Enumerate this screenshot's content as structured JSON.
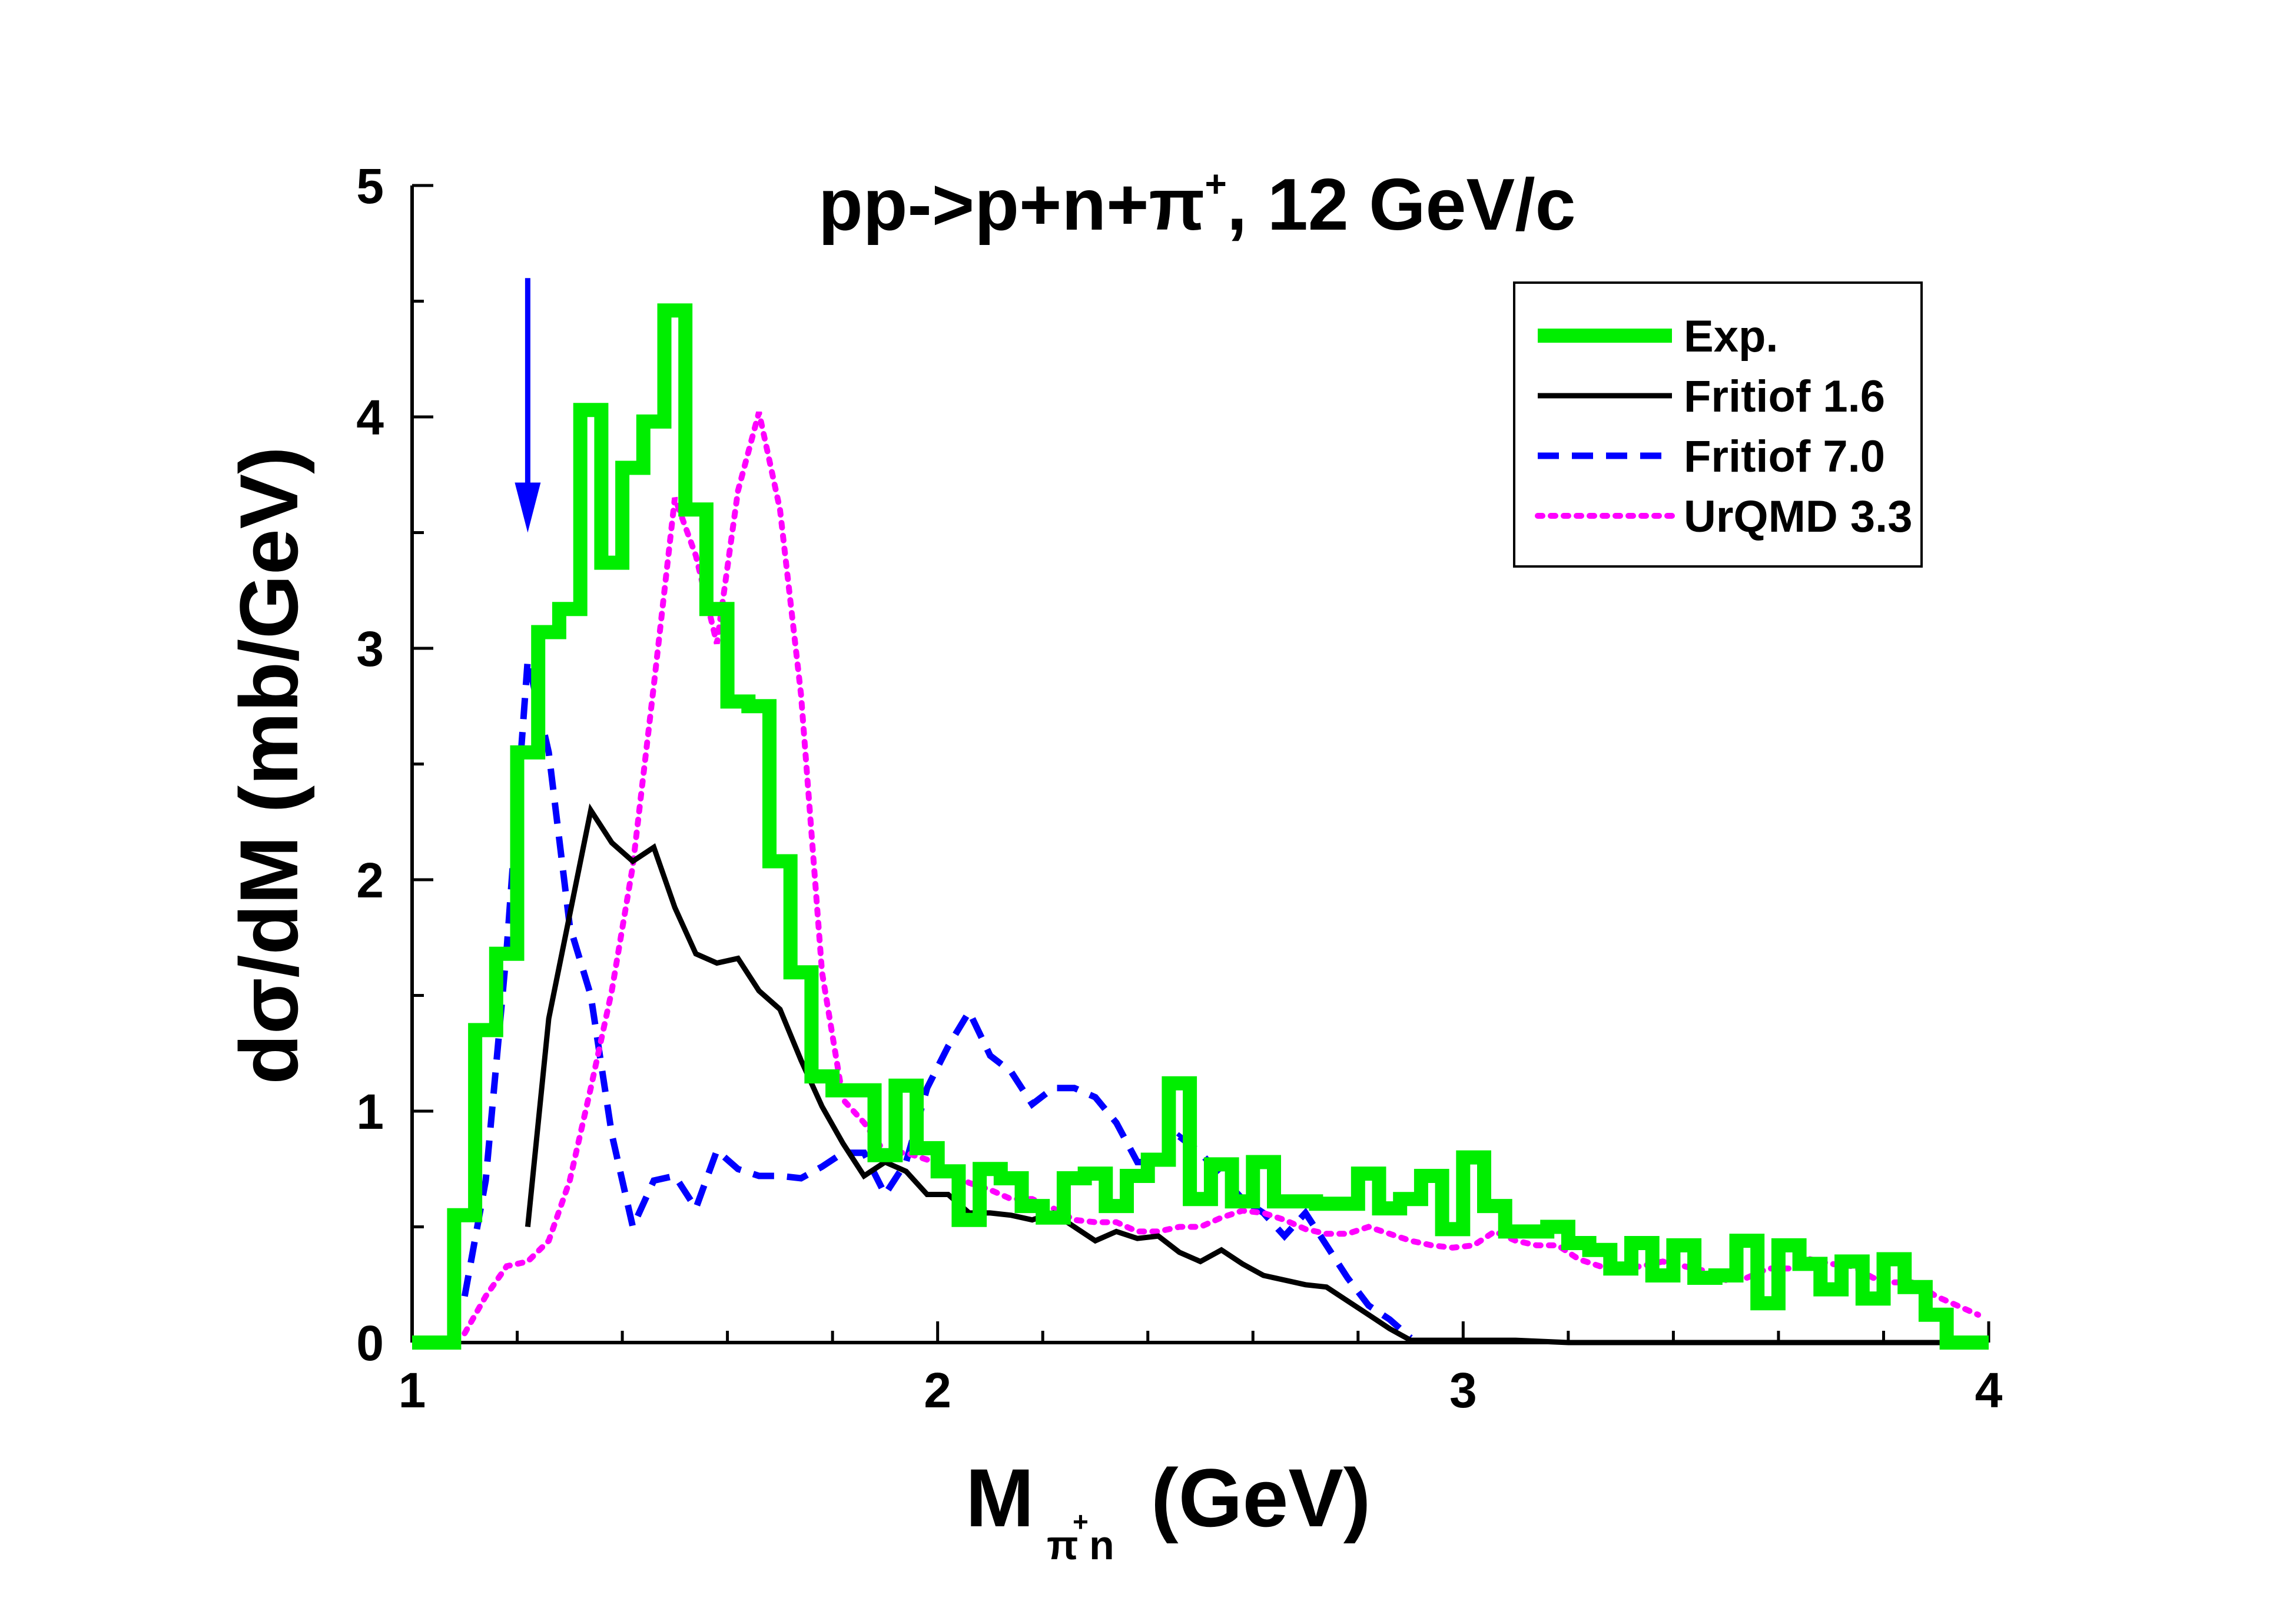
{
  "chart_data": {
    "type": "line",
    "title_main": "pp->p+n+π",
    "title_sup": "+",
    "title_tail": ", 12 GeV/c",
    "xlabel_main": "M",
    "xlabel_sub": "π",
    "xlabel_sup": "+",
    "xlabel_sub2": "n",
    "xlabel_tail": "(GeV)",
    "ylabel": "dσ/dM (mb/GeV)",
    "xlim": [
      1,
      4
    ],
    "ylim": [
      0,
      5
    ],
    "xticks": [
      "1",
      "2",
      "3",
      "4"
    ],
    "yticks": [
      "0",
      "1",
      "2",
      "3",
      "4",
      "5"
    ],
    "legend_position": "top-right",
    "arrow": {
      "x": 1.22,
      "y_from": 4.6,
      "y_to": 3.5,
      "color": "#0000ff"
    },
    "series": [
      {
        "name": "Exp.",
        "style": "step",
        "color": "#00ee00",
        "bin_width": 0.04,
        "bins_start": 1.0,
        "values": [
          0.0,
          0.0,
          0.55,
          1.35,
          1.68,
          2.55,
          3.07,
          3.17,
          4.03,
          3.37,
          3.78,
          3.98,
          4.46,
          3.6,
          3.17,
          2.77,
          2.75,
          2.08,
          1.6,
          1.15,
          1.09,
          1.09,
          0.81,
          1.11,
          0.84,
          0.74,
          0.53,
          0.75,
          0.71,
          0.59,
          0.54,
          0.71,
          0.73,
          0.59,
          0.72,
          0.79,
          1.12,
          0.62,
          0.77,
          0.61,
          0.78,
          0.61,
          0.61,
          0.6,
          0.6,
          0.73,
          0.58,
          0.62,
          0.72,
          0.49,
          0.8,
          0.59,
          0.48,
          0.48,
          0.5,
          0.43,
          0.4,
          0.32,
          0.43,
          0.29,
          0.42,
          0.28,
          0.29,
          0.44,
          0.17,
          0.42,
          0.34,
          0.23,
          0.35,
          0.19,
          0.36,
          0.24,
          0.12,
          0.0,
          0.0
        ]
      },
      {
        "name": "Fritiof 1.6",
        "style": "solid",
        "color": "#000000",
        "x": [
          1.22,
          1.26,
          1.3,
          1.34,
          1.38,
          1.42,
          1.46,
          1.5,
          1.54,
          1.58,
          1.62,
          1.66,
          1.7,
          1.74,
          1.78,
          1.82,
          1.86,
          1.9,
          1.94,
          1.98,
          2.02,
          2.06,
          2.1,
          2.14,
          2.18,
          2.22,
          2.26,
          2.3,
          2.34,
          2.38,
          2.42,
          2.46,
          2.5,
          2.54,
          2.58,
          2.62,
          2.66,
          2.7,
          2.74,
          2.78,
          2.82,
          2.86,
          2.9,
          3.0,
          3.1,
          3.2,
          3.4,
          4.0
        ],
        "y": [
          0.5,
          1.4,
          1.85,
          2.3,
          2.16,
          2.08,
          2.14,
          1.88,
          1.68,
          1.64,
          1.66,
          1.52,
          1.44,
          1.22,
          1.02,
          0.86,
          0.72,
          0.78,
          0.74,
          0.64,
          0.64,
          0.56,
          0.56,
          0.55,
          0.53,
          0.56,
          0.5,
          0.44,
          0.48,
          0.45,
          0.46,
          0.39,
          0.35,
          0.4,
          0.34,
          0.29,
          0.27,
          0.25,
          0.24,
          0.18,
          0.12,
          0.06,
          0.01,
          0.01,
          0.01,
          0.0,
          0.0,
          0.0
        ]
      },
      {
        "name": "Fritiof 7.0",
        "style": "dashed",
        "color": "#0000ff",
        "x": [
          1.1,
          1.14,
          1.18,
          1.22,
          1.26,
          1.3,
          1.34,
          1.38,
          1.42,
          1.46,
          1.5,
          1.54,
          1.58,
          1.62,
          1.66,
          1.7,
          1.74,
          1.78,
          1.82,
          1.86,
          1.9,
          1.94,
          1.98,
          2.02,
          2.06,
          2.1,
          2.14,
          2.18,
          2.22,
          2.26,
          2.3,
          2.34,
          2.38,
          2.42,
          2.46,
          2.5,
          2.54,
          2.58,
          2.62,
          2.66,
          2.7,
          2.74,
          2.78,
          2.82,
          2.86,
          2.9
        ],
        "y": [
          0.2,
          0.7,
          1.7,
          2.95,
          2.55,
          1.8,
          1.5,
          0.9,
          0.5,
          0.7,
          0.72,
          0.58,
          0.83,
          0.75,
          0.72,
          0.72,
          0.71,
          0.76,
          0.82,
          0.82,
          0.64,
          0.78,
          1.1,
          1.28,
          1.43,
          1.24,
          1.17,
          1.03,
          1.1,
          1.1,
          1.06,
          0.95,
          0.78,
          0.78,
          0.89,
          0.82,
          0.72,
          0.62,
          0.56,
          0.46,
          0.56,
          0.42,
          0.28,
          0.16,
          0.1,
          0.02
        ]
      },
      {
        "name": "UrQMD 3.3",
        "style": "dotted",
        "color": "#ff00ff",
        "x": [
          1.1,
          1.14,
          1.18,
          1.22,
          1.26,
          1.3,
          1.34,
          1.38,
          1.42,
          1.46,
          1.5,
          1.54,
          1.58,
          1.62,
          1.66,
          1.7,
          1.74,
          1.78,
          1.82,
          1.86,
          1.9,
          1.94,
          1.98,
          2.02,
          2.06,
          2.1,
          2.14,
          2.18,
          2.22,
          2.26,
          2.3,
          2.34,
          2.38,
          2.42,
          2.46,
          2.5,
          2.54,
          2.58,
          2.62,
          2.66,
          2.7,
          2.74,
          2.78,
          2.82,
          2.86,
          2.9,
          2.94,
          2.98,
          3.02,
          3.06,
          3.1,
          3.14,
          3.18,
          3.22,
          3.26,
          3.3,
          3.34,
          3.38,
          3.42,
          3.46,
          3.5,
          3.54,
          3.58,
          3.62,
          3.66,
          3.7,
          3.74,
          3.78,
          3.82,
          3.86,
          3.9,
          3.94,
          3.98
        ],
        "y": [
          0.04,
          0.2,
          0.33,
          0.35,
          0.44,
          0.7,
          1.1,
          1.52,
          2.06,
          2.84,
          3.65,
          3.4,
          3.02,
          3.68,
          4.02,
          3.6,
          2.8,
          1.6,
          1.05,
          0.95,
          0.82,
          0.82,
          0.79,
          0.74,
          0.69,
          0.66,
          0.62,
          0.62,
          0.58,
          0.53,
          0.52,
          0.52,
          0.48,
          0.48,
          0.5,
          0.5,
          0.54,
          0.57,
          0.56,
          0.53,
          0.49,
          0.47,
          0.47,
          0.5,
          0.47,
          0.44,
          0.42,
          0.41,
          0.42,
          0.48,
          0.44,
          0.42,
          0.42,
          0.36,
          0.33,
          0.32,
          0.33,
          0.35,
          0.33,
          0.31,
          0.27,
          0.28,
          0.32,
          0.32,
          0.36,
          0.34,
          0.33,
          0.28,
          0.26,
          0.26,
          0.2,
          0.16,
          0.12
        ]
      }
    ]
  }
}
